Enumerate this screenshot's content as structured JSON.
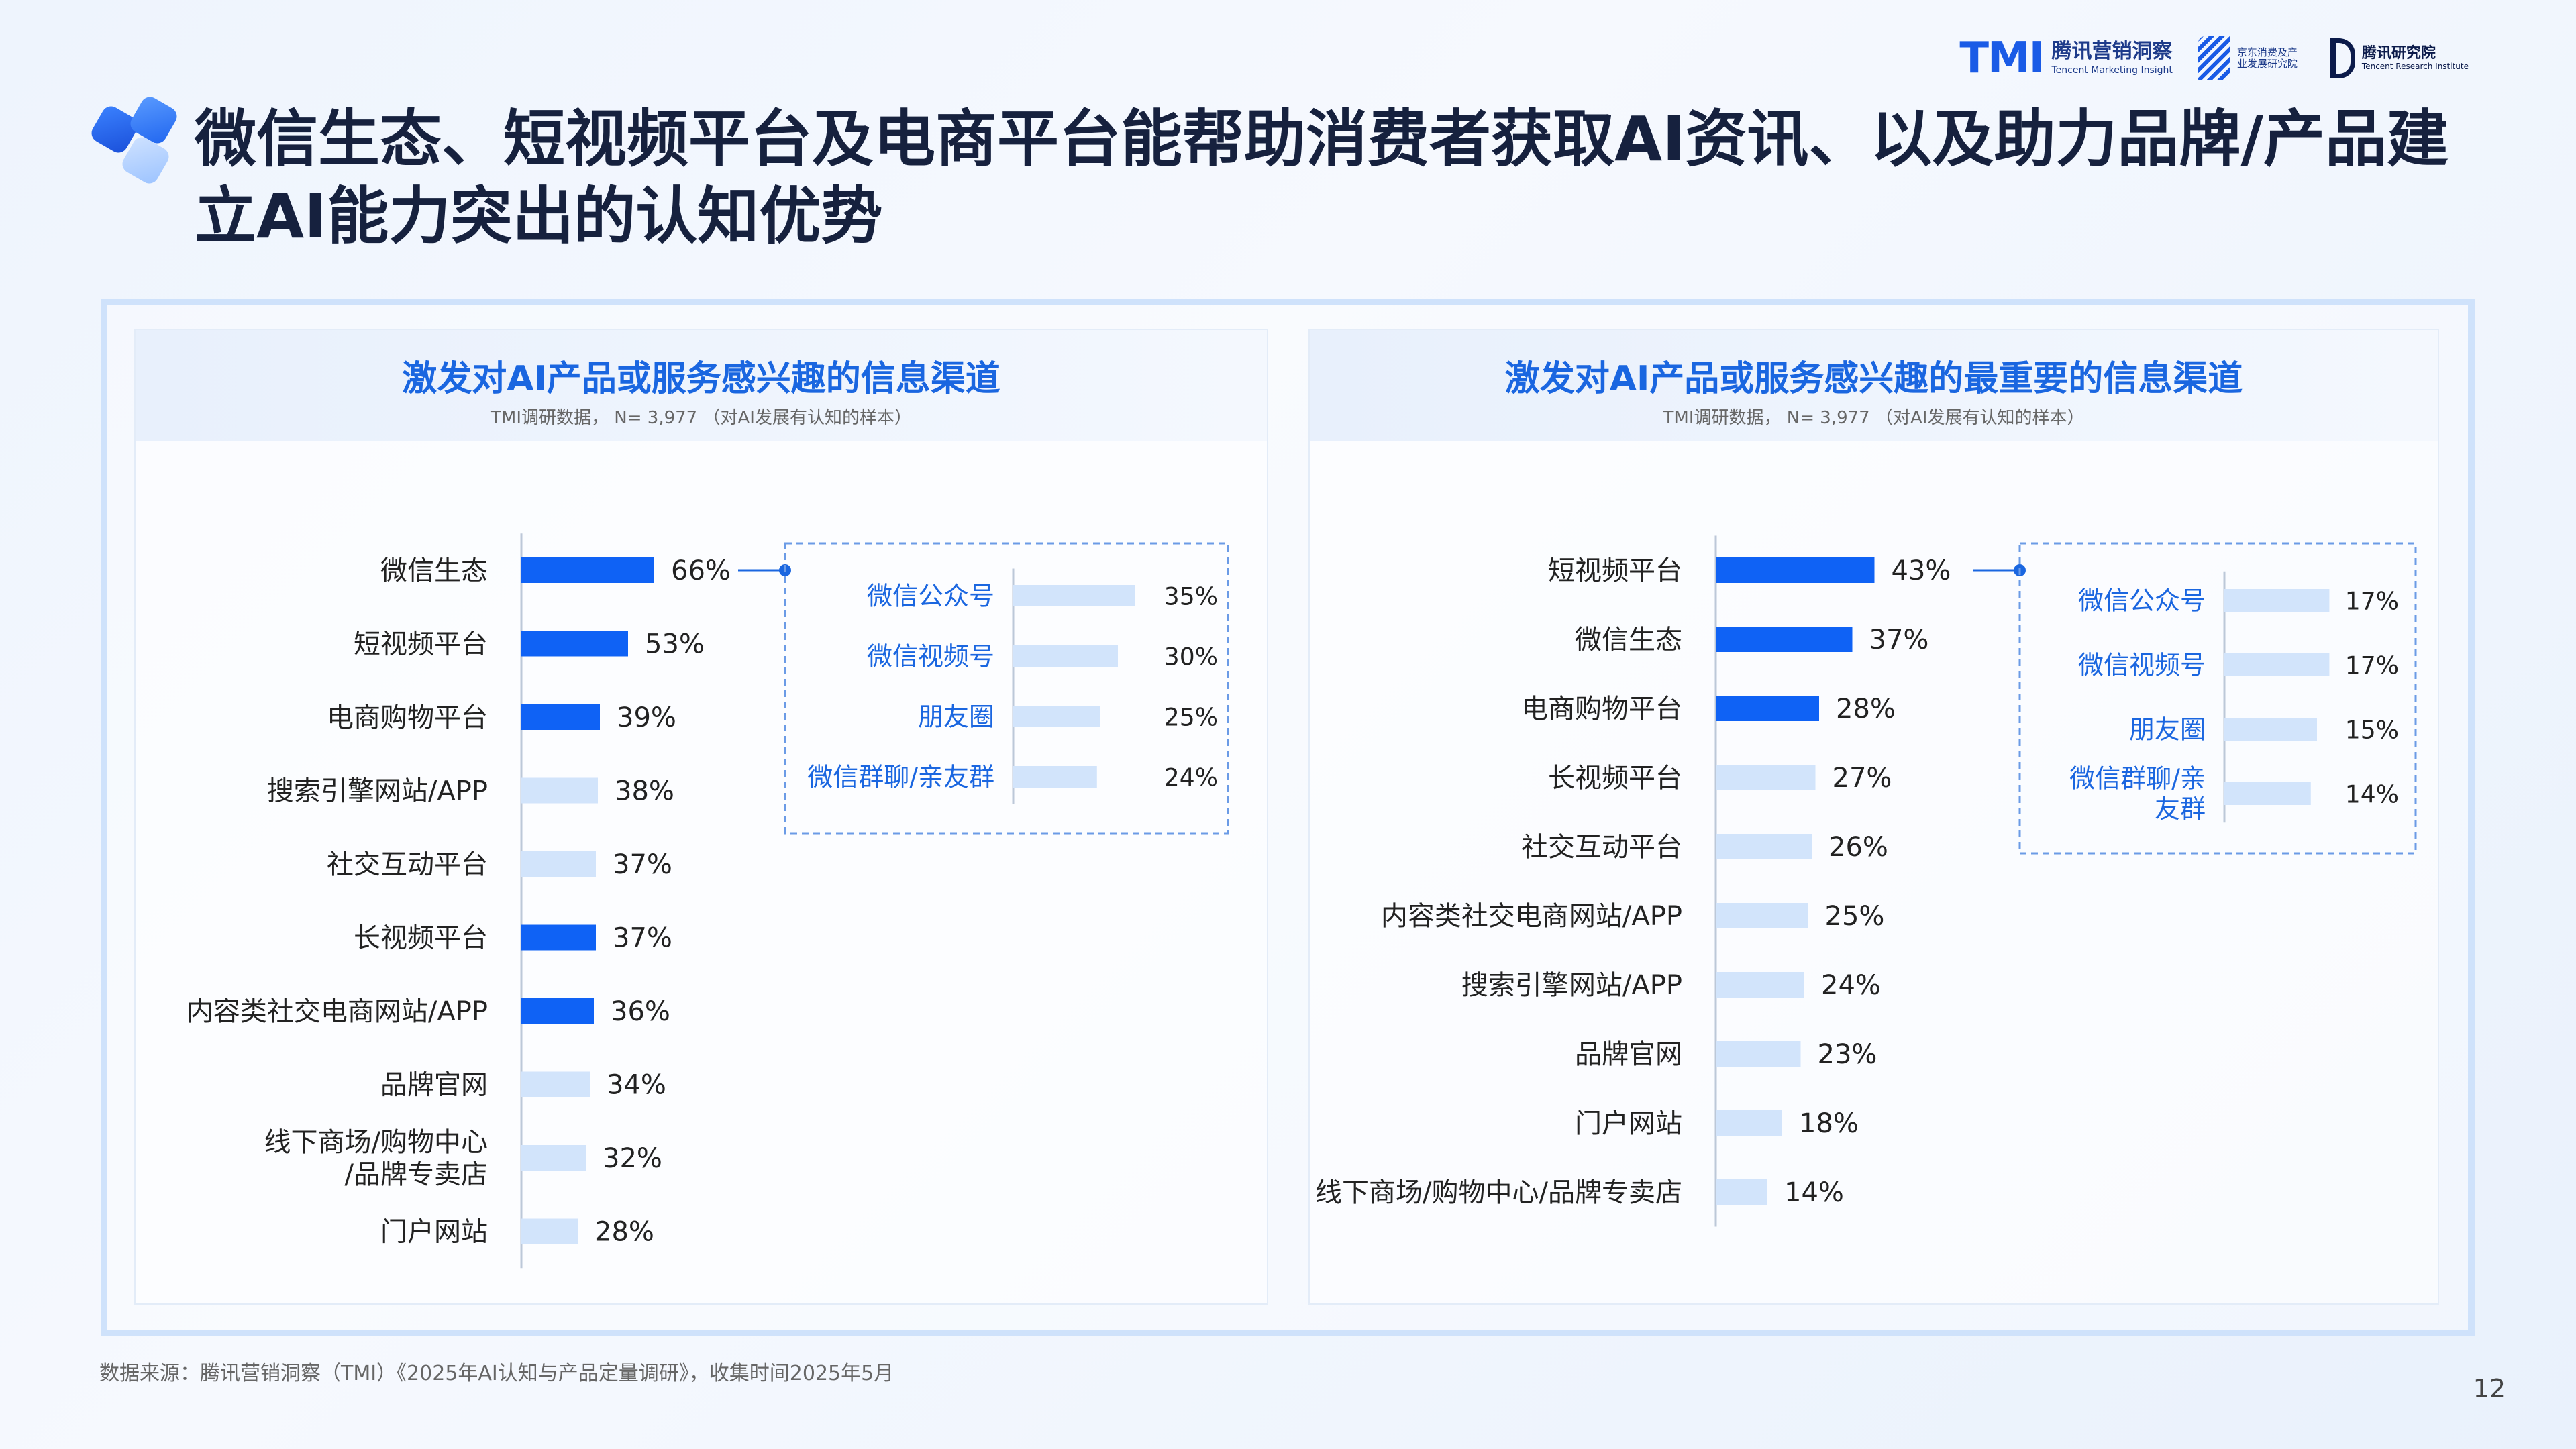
{
  "header": {
    "title": "微信生态、短视频平台及电商平台能帮助消费者获取AI资讯、以及助力品牌/产品建立AI能力突出的认知优势",
    "logos": {
      "tmi_mark": "TMI",
      "tmi_cn": "腾讯营销洞察",
      "tmi_en": "Tencent Marketing Insight",
      "jd_cn": "京东消费及产业发展研究院",
      "tr_cn": "腾讯研究院",
      "tr_en": "Tencent Research Institute"
    }
  },
  "left_panel": {
    "title": "激发对AI产品或服务感兴趣的信息渠道",
    "subtitle": "TMI调研数据， N= 3,977 （对AI发展有认知的样本）"
  },
  "right_panel": {
    "title": "激发对AI产品或服务感兴趣的最重要的信息渠道",
    "subtitle": "TMI调研数据， N= 3,977 （对AI发展有认知的样本）"
  },
  "footer": {
    "source": "数据来源：腾讯营销洞察（TMI）《2025年AI认知与产品定量调研》，收集时间2025年5月",
    "page_number": "12"
  },
  "colors": {
    "highlight": "#0f62f5",
    "light": "#d2e4fb",
    "accent_text": "#1a66e0"
  },
  "chart_data": [
    {
      "type": "bar",
      "orientation": "horizontal",
      "title": "激发对AI产品或服务感兴趣的信息渠道",
      "categories": [
        "微信生态",
        "短视频平台",
        "电商购物平台",
        "搜索引擎网站/APP",
        "社交互动平台",
        "长视频平台",
        "内容类社交电商网站/APP",
        "品牌官网",
        "线下商场/购物中心/品牌专卖店",
        "门户网站"
      ],
      "values": [
        66,
        53,
        39,
        38,
        37,
        37,
        36,
        34,
        32,
        28
      ],
      "value_labels": [
        "66%",
        "53%",
        "39%",
        "38%",
        "37%",
        "37%",
        "36%",
        "34%",
        "32%",
        "28%"
      ],
      "highlighted": [
        true,
        true,
        true,
        false,
        false,
        true,
        true,
        false,
        false,
        false
      ],
      "unit": "%"
    },
    {
      "type": "bar",
      "orientation": "horizontal",
      "title": "微信生态 breakdown",
      "categories": [
        "微信公众号",
        "微信视频号",
        "朋友圈",
        "微信群聊/亲友群"
      ],
      "values": [
        35,
        30,
        25,
        24
      ],
      "value_labels": [
        "35%",
        "30%",
        "25%",
        "24%"
      ],
      "unit": "%"
    },
    {
      "type": "bar",
      "orientation": "horizontal",
      "title": "激发对AI产品或服务感兴趣的最重要的信息渠道",
      "categories": [
        "短视频平台",
        "微信生态",
        "电商购物平台",
        "长视频平台",
        "社交互动平台",
        "内容类社交电商网站/APP",
        "搜索引擎网站/APP",
        "品牌官网",
        "门户网站",
        "线下商场/购物中心/品牌专卖店"
      ],
      "values": [
        43,
        37,
        28,
        27,
        26,
        25,
        24,
        23,
        18,
        14
      ],
      "value_labels": [
        "43%",
        "37%",
        "28%",
        "27%",
        "26%",
        "25%",
        "24%",
        "23%",
        "18%",
        "14%"
      ],
      "highlighted": [
        true,
        true,
        true,
        false,
        false,
        false,
        false,
        false,
        false,
        false
      ],
      "unit": "%"
    },
    {
      "type": "bar",
      "orientation": "horizontal",
      "title": "微信生态 breakdown",
      "categories": [
        "微信公众号",
        "微信视频号",
        "朋友圈",
        "微信群聊/亲友群"
      ],
      "values": [
        17,
        17,
        15,
        14
      ],
      "value_labels": [
        "17%",
        "17%",
        "15%",
        "14%"
      ],
      "unit": "%"
    }
  ]
}
